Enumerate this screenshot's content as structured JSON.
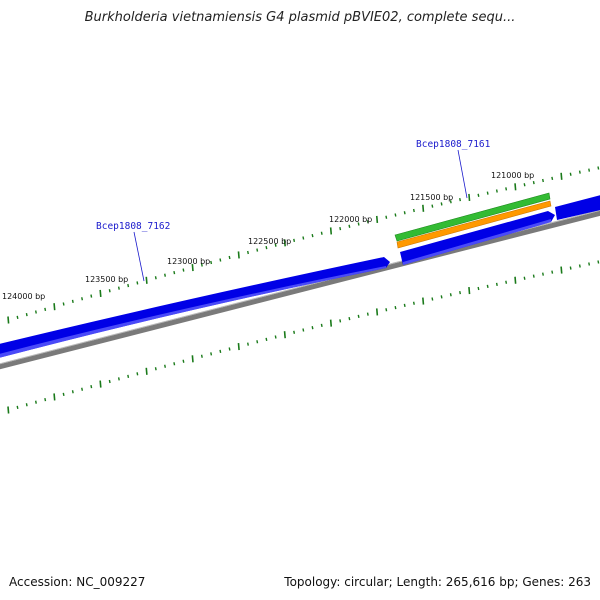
{
  "title": "Burkholderia vietnamiensis G4 plasmid pBVIE02, complete sequ...",
  "footer": {
    "accession": "Accession: NC_009227",
    "summary": "Topology: circular; Length: 265,616 bp; Genes: 263"
  },
  "colors": {
    "backbone": "#808080",
    "cds_forward": "#0000e6",
    "feature_green": "#33bb33",
    "feature_orange": "#ff9900",
    "tick": "#1a7a1a",
    "gene_label": "#1a1acc",
    "text": "#111111"
  },
  "ticks": [
    {
      "label": "121000 bp"
    },
    {
      "label": "121500 bp"
    },
    {
      "label": "122000 bp"
    },
    {
      "label": "122500 bp"
    },
    {
      "label": "123000 bp"
    },
    {
      "label": "123500 bp"
    },
    {
      "label": "124000 bp"
    }
  ],
  "genes": [
    {
      "label": "Bcep1808_7161"
    },
    {
      "label": "Bcep1808_7162"
    }
  ]
}
